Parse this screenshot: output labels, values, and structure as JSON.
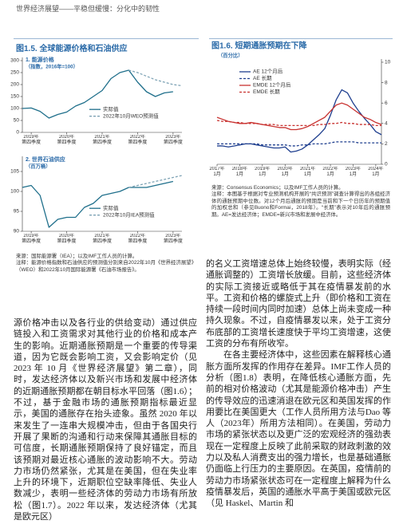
{
  "header": "世界经济展望——平稳但缓慢：分化中的韧性",
  "figures": [
    {
      "title": "图1.5. 全球能源价格和石油供应",
      "source": "来源：国际能源署（IEA）；以及IMF工作人员的计算。",
      "note": "注释：能源价格指数和石油供应的预测值分别来自2022年10月《世界经济展望》（WEO）和2022年10月国际能源署《石油市场报告》。"
    },
    {
      "source": "来源：Consensus Economics；以及IMF工作人员的计算。",
      "note": "注释：本图基于根据对专业预测机构开展的“共识预测”调查计算得出的各组经济体的通胀预期中位数。对12个月后通胀的预期是当前和下一个日历年的预期值的加权总和（参见Buono和Formai，2018年）。“长期”表示对10年后的通胀预期。AE=发达经济体；EMDE=新兴市场和发展中经济体。"
    }
  ],
  "chart_data": [
    {
      "type": "line",
      "title": "1. 能源价格",
      "subtitle": "（指数，2016年=100）",
      "categories": [
        null,
        "2019年\n第四季度",
        null,
        null,
        null,
        "2020年\n第四季度",
        null,
        null,
        null,
        "2021年\n第四季度",
        null,
        null,
        null,
        "2022年\n第四季度",
        null,
        null,
        null,
        "2023年\n第四季度",
        null
      ],
      "series": [
        {
          "name": "实际值",
          "color": "#1f6f8b",
          "style": "solid",
          "values": [
            100,
            102,
            88,
            60,
            75,
            85,
            110,
            125,
            150,
            175,
            225,
            250,
            260,
            210,
            170,
            150,
            165,
            170,
            null
          ]
        },
        {
          "name": "2022年10月WEO预测值",
          "color": "#7ea3b5",
          "style": "dashed",
          "values": [
            null,
            null,
            null,
            null,
            null,
            null,
            null,
            null,
            null,
            null,
            null,
            null,
            260,
            250,
            235,
            220,
            210,
            200,
            195
          ]
        }
      ],
      "ylim": [
        0,
        300
      ],
      "yticks": [
        0,
        50,
        100,
        150,
        200,
        250,
        300
      ],
      "y_axis_position": "left",
      "grid": false,
      "legend": "center"
    },
    {
      "type": "line",
      "title": "2. 世界石油供应",
      "subtitle": "（百万桶）",
      "categories": [
        null,
        "2019年\n第四季度",
        null,
        null,
        null,
        "2020年\n第四季度",
        null,
        null,
        null,
        "2021年\n第四季度",
        null,
        null,
        null,
        "2022年\n第四季度",
        null,
        null,
        null,
        "2023年\n第四季度",
        null
      ],
      "series": [
        {
          "name": "实际值",
          "color": "#1f6f8b",
          "style": "solid",
          "values": [
            101,
            101.5,
            99,
            91,
            93,
            93.5,
            93.5,
            96,
            97,
            99,
            99.5,
            100,
            101,
            101,
            101,
            101.5,
            102,
            102.5,
            null
          ]
        },
        {
          "name": "2022年10月IEA预测值",
          "color": "#7ea3b5",
          "style": "dashed",
          "values": [
            null,
            null,
            null,
            null,
            null,
            null,
            null,
            null,
            null,
            null,
            null,
            null,
            101,
            101.5,
            102,
            102.5,
            103,
            103.5,
            104
          ]
        }
      ],
      "ylim": [
        90,
        108
      ],
      "yticks": [
        90,
        95,
        100,
        105
      ],
      "y_axis_position": "left",
      "grid": false,
      "legend": "center"
    },
    {
      "type": "line",
      "title": "图1.6. 短期通胀预期在下降",
      "subtitle": "（百分比）",
      "categories": [
        "2017年\n1月",
        null,
        null,
        null,
        "2018年\n1月",
        null,
        null,
        null,
        "2019年\n1月",
        null,
        null,
        null,
        "2020年\n1月",
        null,
        null,
        null,
        "2021年\n1月",
        null,
        null,
        null,
        "2022年\n1月",
        null,
        null,
        null,
        "2023年\n1月",
        null,
        null,
        null,
        "2024年\n1月",
        null
      ],
      "series": [
        {
          "name": "AE 12个月后",
          "color": "#1f3f8f",
          "style": "solid",
          "values": [
            1.8,
            1.8,
            1.7,
            1.8,
            1.9,
            2.0,
            2.0,
            1.9,
            1.8,
            1.7,
            1.6,
            1.6,
            1.7,
            1.2,
            1.3,
            1.5,
            1.9,
            2.4,
            2.9,
            3.5,
            4.8,
            6.3,
            7.3,
            7.0,
            6.0,
            5.2,
            4.5,
            3.9,
            3.2,
            2.9
          ]
        },
        {
          "name": "AE 长期",
          "color": "#1f3f8f",
          "style": "dashed",
          "values": [
            2.0,
            2.0,
            2.0,
            2.0,
            2.0,
            2.0,
            2.0,
            2.0,
            1.9,
            1.9,
            1.9,
            1.9,
            1.9,
            1.8,
            1.8,
            1.9,
            1.9,
            2.0,
            2.0,
            2.0,
            2.1,
            2.2,
            2.2,
            2.2,
            2.2,
            2.1,
            2.1,
            2.1,
            2.1,
            2.1
          ]
        },
        {
          "name": "EMDE 12个月后",
          "color": "#c8312f",
          "style": "solid",
          "values": [
            4.6,
            4.4,
            4.2,
            4.1,
            4.0,
            4.0,
            4.1,
            4.0,
            3.9,
            3.8,
            3.7,
            3.6,
            3.6,
            3.4,
            3.4,
            3.5,
            3.7,
            4.0,
            4.3,
            4.6,
            5.2,
            5.8,
            6.0,
            5.8,
            5.4,
            5.0,
            4.6,
            4.4,
            4.1,
            3.9
          ]
        },
        {
          "name": "EMDE 长期",
          "color": "#c8312f",
          "style": "dashed",
          "values": [
            4.3,
            4.2,
            4.2,
            4.1,
            4.1,
            4.0,
            4.0,
            4.0,
            3.9,
            3.9,
            3.9,
            3.8,
            3.8,
            3.8,
            3.8,
            3.8,
            3.8,
            3.8,
            3.9,
            3.9,
            4.0,
            4.0,
            4.1,
            4.0,
            4.0,
            3.9,
            3.9,
            3.9,
            3.8,
            3.8
          ]
        }
      ],
      "ylim": [
        0,
        10
      ],
      "yticks": [
        0,
        2,
        4,
        6,
        8,
        10
      ],
      "y_axis_position": "right",
      "grid": false,
      "legend": "top-left"
    }
  ],
  "body": {
    "right": [
      "的名义工资增速总体上始终较慢，表明实际（经通胀调整的）工资增长放缓。目前，这些经济体的实际工资接近或略低于其在疫情暴发前的水平。工资和价格的螺旋式上升（即价格和工资在持续一段时间内同时加速）总体上尚未变成一种持久现象。不过，自疫情暴发以来，处于工资分布底部的工资增长速度快于平均工资增速，这使工资的分布有所收窄。",
      "在各主要经济体中，这些因素在解释核心通胀方面所发挥的作用存在差异。IMF工作人员的分析（图1.8）表明，在降低核心通胀方面，先前的相对价格波动（尤其是能源价格冲击）产生的传导效应的迅速消退在欧元区和英国发挥的作用要比在美国更大（工作人员所用方法与Dao 等人（2023年）所用方法相同）。在美国，劳动力市场的紧张状态以及更广泛的宏观经济的强劲表现在一定程度上反映了此前采取的财政刺激的效力以及私人消费支出的强力增长，也是基础通胀仍面临上行压力的主要原因。在英国，疫情前的劳动力市场紧张状态可在一定程度上解释为什么疫情暴发后，英国的通胀水平高于美国或欧元区（见 Haskel、Martin 和"
    ],
    "left": [
      "源价格冲击以及各行业的供给变动）通过供应链投入和工资需求对其他行业的价格和成本产生的影响。近期通胀预期是一个重要的传导渠道，因为它既会影响工资，又会影响定价（见2023 年 10 月《世界经济展望》第二章），同时，发达经济体以及新兴市场和发展中经济体的近期通胀预期都在朝目标水平回落（图1.6）；不过，基于金融市场的通胀预期指标最近显示，美国的通胀存在抬头迹象。虽然 2020 年以来发生了一连串大规模冲击，但由于各国央行开展了果断的沟通和行动来保障其通胀目标的可信度，长期通胀预期保持了良好锚定，而且该预期对最近核心通胀的波动影响不大。劳动力市场仍然紧张，尤其是在美国，但在失业率上升的环境下，近期职位空缺率降低、失业人数减少，表明一些经济体的劳动力市场有所放松（图1.7）。2022 年以来，发达经济体（尤其是欧元区）"
    ]
  }
}
